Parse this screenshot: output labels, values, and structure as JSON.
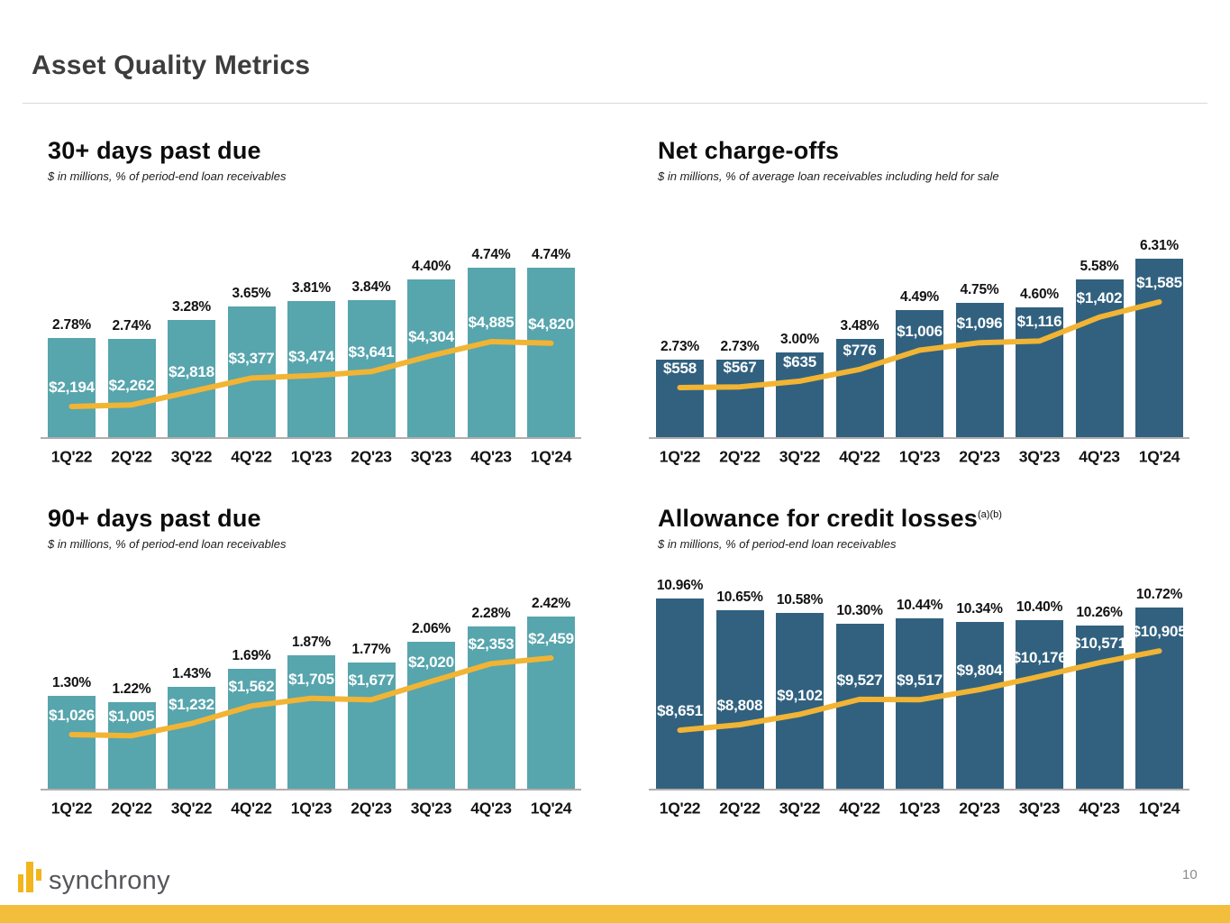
{
  "slide": {
    "title": "Asset Quality Metrics",
    "page_number": "10",
    "logo_text": "synchrony"
  },
  "colors": {
    "teal_bar": "#57a5ad",
    "dark_blue_bar": "#31617f",
    "trend_line_gold": "#f1b434",
    "footer_strip_gold": "#f3be3c",
    "logo_gold": "#f2b51d"
  },
  "chart_data": [
    {
      "id": "thirty-plus-days-past-due",
      "type": "bar+line",
      "title": "30+ days past due",
      "superscript": "",
      "subtitle": "$ in millions, % of period-end loan receivables",
      "categories": [
        "1Q'22",
        "2Q'22",
        "3Q'22",
        "4Q'22",
        "1Q'23",
        "2Q'23",
        "3Q'23",
        "4Q'23",
        "1Q'24"
      ],
      "series": [
        {
          "name": "$ in millions",
          "values": [
            2194,
            2262,
            2818,
            3377,
            3474,
            3641,
            4304,
            4885,
            4820
          ],
          "labels": [
            "$2,194",
            "$2,262",
            "$2,818",
            "$3,377",
            "$3,474",
            "$3,641",
            "$4,304",
            "$4,885",
            "$4,820"
          ]
        },
        {
          "name": "% of period-end loan receivables",
          "values": [
            2.78,
            2.74,
            3.28,
            3.65,
            3.81,
            3.84,
            4.4,
            4.74,
            4.74
          ],
          "labels": [
            "2.78%",
            "2.74%",
            "3.28%",
            "3.65%",
            "3.81%",
            "3.84%",
            "4.40%",
            "4.74%",
            "4.74%"
          ]
        }
      ],
      "bar_color": "#57a5ad",
      "line_color": "#f1b434",
      "grid": false,
      "legend": "none"
    },
    {
      "id": "net-charge-offs",
      "type": "bar+line",
      "title": "Net charge-offs",
      "superscript": "",
      "subtitle": "$ in millions, % of average loan receivables including held for sale",
      "categories": [
        "1Q'22",
        "2Q'22",
        "3Q'22",
        "4Q'22",
        "1Q'23",
        "2Q'23",
        "3Q'23",
        "4Q'23",
        "1Q'24"
      ],
      "series": [
        {
          "name": "$ in millions",
          "values": [
            558,
            567,
            635,
            776,
            1006,
            1096,
            1116,
            1402,
            1585
          ],
          "labels": [
            "$558",
            "$567",
            "$635",
            "$776",
            "$1,006",
            "$1,096",
            "$1,116",
            "$1,402",
            "$1,585"
          ]
        },
        {
          "name": "% of average loan receivables",
          "values": [
            2.73,
            2.73,
            3.0,
            3.48,
            4.49,
            4.75,
            4.6,
            5.58,
            6.31
          ],
          "labels": [
            "2.73%",
            "2.73%",
            "3.00%",
            "3.48%",
            "4.49%",
            "4.75%",
            "4.60%",
            "5.58%",
            "6.31%"
          ]
        }
      ],
      "bar_color": "#31617f",
      "line_color": "#f1b434",
      "grid": false,
      "legend": "none"
    },
    {
      "id": "ninety-plus-days-past-due",
      "type": "bar+line",
      "title": "90+ days past due",
      "superscript": "",
      "subtitle": "$ in millions, % of period-end loan receivables",
      "categories": [
        "1Q'22",
        "2Q'22",
        "3Q'22",
        "4Q'22",
        "1Q'23",
        "2Q'23",
        "3Q'23",
        "4Q'23",
        "1Q'24"
      ],
      "series": [
        {
          "name": "$ in millions",
          "values": [
            1026,
            1005,
            1232,
            1562,
            1705,
            1677,
            2020,
            2353,
            2459
          ],
          "labels": [
            "$1,026",
            "$1,005",
            "$1,232",
            "$1,562",
            "$1,705",
            "$1,677",
            "$2,020",
            "$2,353",
            "$2,459"
          ]
        },
        {
          "name": "% of period-end loan receivables",
          "values": [
            1.3,
            1.22,
            1.43,
            1.69,
            1.87,
            1.77,
            2.06,
            2.28,
            2.42
          ],
          "labels": [
            "1.30%",
            "1.22%",
            "1.43%",
            "1.69%",
            "1.87%",
            "1.77%",
            "2.06%",
            "2.28%",
            "2.42%"
          ]
        }
      ],
      "bar_color": "#57a5ad",
      "line_color": "#f1b434",
      "grid": false,
      "legend": "none"
    },
    {
      "id": "allowance-for-credit-losses",
      "type": "bar+line",
      "title": "Allowance for credit losses",
      "superscript": "(a)(b)",
      "subtitle": "$ in millions, % of period-end loan receivables",
      "categories": [
        "1Q'22",
        "2Q'22",
        "3Q'22",
        "4Q'22",
        "1Q'23",
        "2Q'23",
        "3Q'23",
        "4Q'23",
        "1Q'24"
      ],
      "series": [
        {
          "name": "$ in millions",
          "values": [
            8651,
            8808,
            9102,
            9527,
            9517,
            9804,
            10176,
            10571,
            10905
          ],
          "labels": [
            "$8,651",
            "$8,808",
            "$9,102",
            "$9,527",
            "$9,517",
            "$9,804",
            "$10,176",
            "$10,571",
            "$10,905"
          ]
        },
        {
          "name": "% of period-end loan receivables",
          "values": [
            10.96,
            10.65,
            10.58,
            10.3,
            10.44,
            10.34,
            10.4,
            10.26,
            10.72
          ],
          "labels": [
            "10.96%",
            "10.65%",
            "10.58%",
            "10.30%",
            "10.44%",
            "10.34%",
            "10.40%",
            "10.26%",
            "10.72%"
          ]
        }
      ],
      "bar_color": "#31617f",
      "line_color": "#f1b434",
      "grid": false,
      "legend": "none"
    }
  ]
}
